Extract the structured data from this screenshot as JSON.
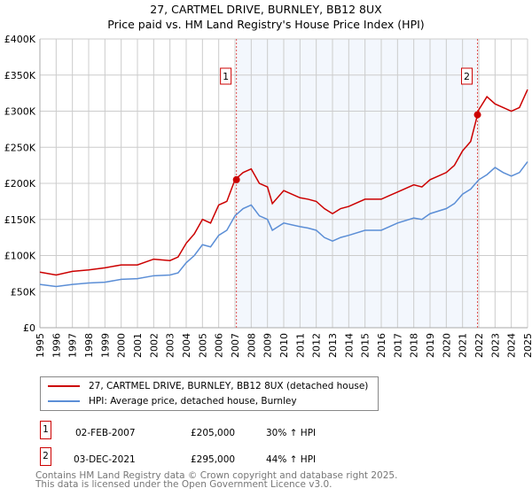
{
  "chart_data": {
    "type": "line",
    "title": "27, CARTMEL DRIVE, BURNLEY, BB12 8UX",
    "subtitle": "Price paid vs. HM Land Registry's House Price Index (HPI)",
    "xlim": [
      1995,
      2025
    ],
    "ylim": [
      0,
      400000
    ],
    "x_ticks": [
      "1995",
      "1996",
      "1997",
      "1998",
      "1999",
      "2000",
      "2001",
      "2002",
      "2003",
      "2004",
      "2005",
      "2006",
      "2007",
      "2008",
      "2009",
      "2010",
      "2011",
      "2012",
      "2013",
      "2014",
      "2015",
      "2016",
      "2017",
      "2018",
      "2019",
      "2020",
      "2021",
      "2022",
      "2023",
      "2024",
      "2025"
    ],
    "y_ticks": [
      {
        "v": 0,
        "label": "£0"
      },
      {
        "v": 50000,
        "label": "£50K"
      },
      {
        "v": 100000,
        "label": "£100K"
      },
      {
        "v": 150000,
        "label": "£150K"
      },
      {
        "v": 200000,
        "label": "£200K"
      },
      {
        "v": 250000,
        "label": "£250K"
      },
      {
        "v": 300000,
        "label": "£300K"
      },
      {
        "v": 350000,
        "label": "£350K"
      },
      {
        "v": 400000,
        "label": "£400K"
      }
    ],
    "grid": true,
    "series": [
      {
        "name": "27, CARTMEL DRIVE, BURNLEY, BB12 8UX (detached house)",
        "color": "#cc0000",
        "x": [
          1995,
          1996,
          1997,
          1998,
          1999,
          2000,
          2001,
          2002,
          2003,
          2003.5,
          2004,
          2004.5,
          2005,
          2005.5,
          2006,
          2006.5,
          2007,
          2007.5,
          2008,
          2008.5,
          2009,
          2009.3,
          2010,
          2011,
          2011.5,
          2012,
          2012.5,
          2013,
          2013.5,
          2014,
          2015,
          2016,
          2016.5,
          2017,
          2018,
          2018.5,
          2019,
          2020,
          2020.5,
          2021,
          2021.5,
          2021.92,
          2022,
          2022.5,
          2023,
          2023.5,
          2024,
          2024.5,
          2025
        ],
        "y": [
          77000,
          73000,
          78000,
          80000,
          83000,
          87000,
          87000,
          95000,
          93000,
          98000,
          117000,
          130000,
          150000,
          145000,
          170000,
          175000,
          205000,
          215000,
          220000,
          200000,
          195000,
          172000,
          190000,
          180000,
          178000,
          175000,
          165000,
          158000,
          165000,
          168000,
          178000,
          178000,
          183000,
          188000,
          198000,
          195000,
          205000,
          215000,
          225000,
          245000,
          258000,
          295000,
          302000,
          320000,
          310000,
          305000,
          300000,
          305000,
          330000
        ]
      },
      {
        "name": "HPI: Average price, detached house, Burnley",
        "color": "#5b8ed6",
        "x": [
          1995,
          1996,
          1997,
          1998,
          1999,
          2000,
          2001,
          2002,
          2003,
          2003.5,
          2004,
          2004.5,
          2005,
          2005.5,
          2006,
          2006.5,
          2007,
          2007.5,
          2008,
          2008.5,
          2009,
          2009.3,
          2010,
          2011,
          2011.5,
          2012,
          2012.5,
          2013,
          2013.5,
          2014,
          2015,
          2016,
          2016.5,
          2017,
          2018,
          2018.5,
          2019,
          2020,
          2020.5,
          2021,
          2021.5,
          2022,
          2022.5,
          2023,
          2023.5,
          2024,
          2024.5,
          2025
        ],
        "y": [
          60000,
          57000,
          60000,
          62000,
          63000,
          67000,
          68000,
          72000,
          73000,
          76000,
          90000,
          100000,
          115000,
          112000,
          128000,
          135000,
          155000,
          165000,
          170000,
          155000,
          150000,
          135000,
          145000,
          140000,
          138000,
          135000,
          125000,
          120000,
          125000,
          128000,
          135000,
          135000,
          140000,
          145000,
          152000,
          150000,
          158000,
          165000,
          172000,
          185000,
          192000,
          205000,
          212000,
          222000,
          215000,
          210000,
          215000,
          230000
        ]
      }
    ],
    "shaded_range": [
      2007.09,
      2021.92
    ],
    "annotations": [
      {
        "label": "1",
        "x": 2007.09,
        "y": 205000
      },
      {
        "label": "2",
        "x": 2021.92,
        "y": 295000
      }
    ]
  },
  "transactions": [
    {
      "num": "1",
      "date": "02-FEB-2007",
      "price": "£205,000",
      "hpi": "30% ↑ HPI"
    },
    {
      "num": "2",
      "date": "03-DEC-2021",
      "price": "£295,000",
      "hpi": "44% ↑ HPI"
    }
  ],
  "footer": [
    "Contains HM Land Registry data © Crown copyright and database right 2025.",
    "This data is licensed under the Open Government Licence v3.0."
  ]
}
